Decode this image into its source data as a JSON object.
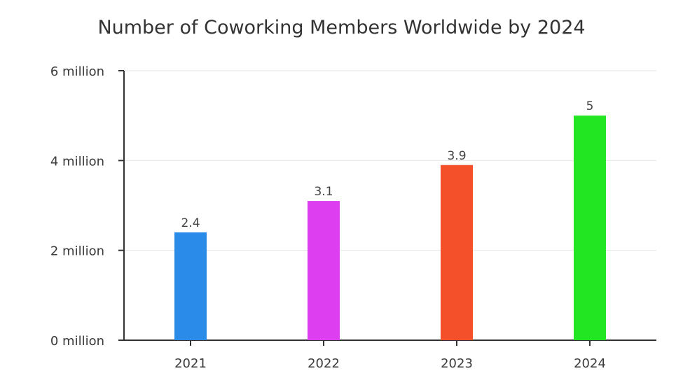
{
  "chart_data": {
    "type": "bar",
    "title": "Number of Coworking Members Worldwide by 2024",
    "categories": [
      "2021",
      "2022",
      "2023",
      "2024"
    ],
    "values": [
      2.4,
      3.1,
      3.9,
      5
    ],
    "value_labels": [
      "2.4",
      "3.1",
      "3.9",
      "5"
    ],
    "bar_colors": [
      "#2b8be8",
      "#dc3ef0",
      "#f4502a",
      "#22e622"
    ],
    "ylim": [
      0,
      6
    ],
    "yticks": [
      0,
      2,
      4,
      6
    ],
    "ytick_labels": [
      "0 million",
      "2 million",
      "4 million",
      "6 million"
    ],
    "xlabel": "",
    "ylabel": "",
    "grid": true,
    "legend": "none"
  }
}
